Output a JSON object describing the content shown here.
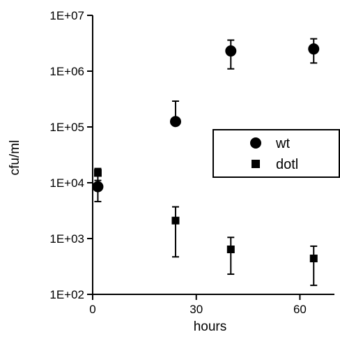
{
  "chart_data": {
    "type": "scatter",
    "xlabel": "hours",
    "ylabel": "cfu/ml",
    "xlim": [
      0,
      70
    ],
    "ylim": [
      100,
      10000000
    ],
    "yscale": "log",
    "x_ticks": [
      0,
      30,
      60
    ],
    "x_tick_labels": [
      "0",
      "30",
      "60"
    ],
    "y_ticks": [
      100,
      1000,
      10000,
      100000,
      1000000,
      10000000
    ],
    "y_tick_labels": [
      "1E+02",
      "1E+03",
      "1E+04",
      "1E+05",
      "1E+06",
      "1E+07"
    ],
    "grid": false,
    "legend": {
      "position": "right",
      "frame": true
    },
    "series": [
      {
        "name": "wt",
        "marker": "circle",
        "color": "#000000",
        "points": [
          {
            "x": 1.5,
            "y": 8500,
            "err_low": 4600,
            "err_high": 11000
          },
          {
            "x": 24,
            "y": 125000,
            "err_low": 125000,
            "err_high": 290000
          },
          {
            "x": 40,
            "y": 2300000,
            "err_low": 1100000,
            "err_high": 3600000
          },
          {
            "x": 64,
            "y": 2500000,
            "err_low": 1400000,
            "err_high": 3800000
          }
        ]
      },
      {
        "name": "dotl",
        "marker": "square",
        "color": "#000000",
        "points": [
          {
            "x": 1.5,
            "y": 15000,
            "err_low": 9500,
            "err_high": 18000
          },
          {
            "x": 24,
            "y": 2100,
            "err_low": 470,
            "err_high": 3700
          },
          {
            "x": 40,
            "y": 640,
            "err_low": 230,
            "err_high": 1050
          },
          {
            "x": 64,
            "y": 440,
            "err_low": 145,
            "err_high": 730
          }
        ]
      }
    ]
  }
}
